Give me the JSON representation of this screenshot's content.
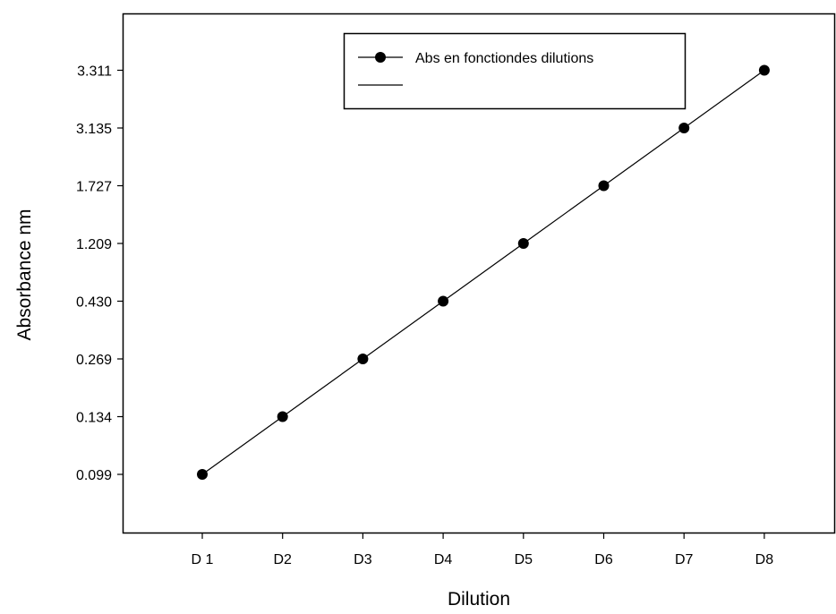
{
  "chart_data": {
    "type": "line",
    "title": "",
    "xlabel": "Dilution",
    "ylabel": "Absorbance nm",
    "categories": [
      "D1",
      "D2",
      "D3",
      "D4",
      "D5",
      "D6",
      "D7",
      "D8"
    ],
    "x_tick_labels": [
      "D 1",
      "D2",
      "D3",
      "D4",
      "D5",
      "D6",
      "D7",
      "D8"
    ],
    "y_tick_labels": [
      "0.099",
      "0.134",
      "0.269",
      "0.430",
      "1.209",
      "1.727",
      "3.135",
      "3.311"
    ],
    "y_scale": "categorical (tick labels evenly spaced, not proportional)",
    "series": [
      {
        "name": "Abs en fonctiondes dilutions",
        "values": [
          0.099,
          0.134,
          0.269,
          0.43,
          1.209,
          1.727,
          3.135,
          3.311
        ],
        "marker": "circle",
        "color": "#000000"
      }
    ],
    "legend": {
      "placement": "top-center",
      "entries": [
        "Abs en fonctiondes dilutions",
        ""
      ]
    },
    "grid": false
  }
}
